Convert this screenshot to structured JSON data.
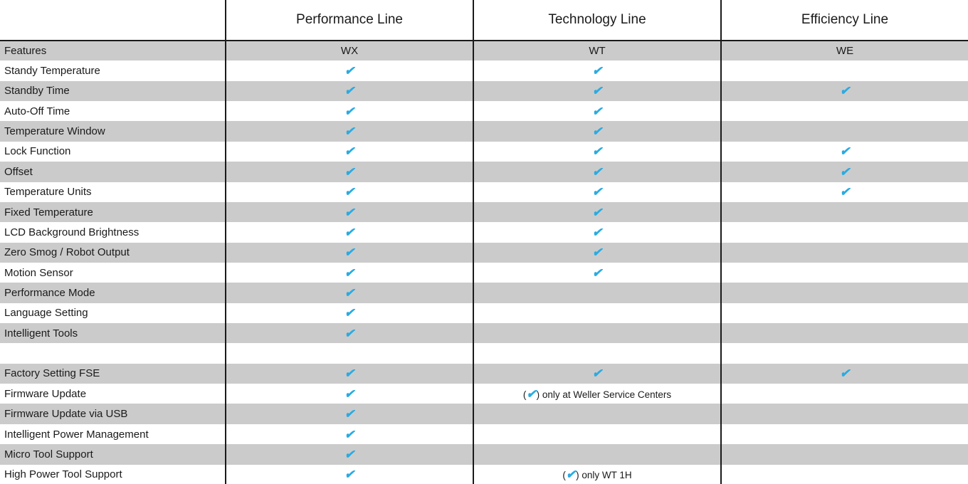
{
  "colors": {
    "accent": "#29ABE2",
    "stripe": "#CBCBCB",
    "text": "#1A1A1A",
    "line": "#1A1A1A"
  },
  "check_symbol": "✔",
  "header": {
    "groups": [
      "Performance Line",
      "Technology Line",
      "Efficiency Line"
    ]
  },
  "subheader": {
    "label": "Features",
    "models": [
      "WX",
      "WT",
      "WE"
    ]
  },
  "rows": [
    {
      "feature": "Standy Temperature",
      "cells": [
        {
          "check": true
        },
        {
          "check": true
        },
        {}
      ]
    },
    {
      "feature": "Standby Time",
      "cells": [
        {
          "check": true
        },
        {
          "check": true
        },
        {
          "check": true
        }
      ]
    },
    {
      "feature": "Auto-Off Time",
      "cells": [
        {
          "check": true
        },
        {
          "check": true
        },
        {}
      ]
    },
    {
      "feature": "Temperature Window",
      "cells": [
        {
          "check": true
        },
        {
          "check": true
        },
        {}
      ]
    },
    {
      "feature": "Lock Function",
      "cells": [
        {
          "check": true
        },
        {
          "check": true
        },
        {
          "check": true
        }
      ]
    },
    {
      "feature": "Offset",
      "cells": [
        {
          "check": true
        },
        {
          "check": true
        },
        {
          "check": true
        }
      ]
    },
    {
      "feature": "Temperature Units",
      "cells": [
        {
          "check": true
        },
        {
          "check": true
        },
        {
          "check": true
        }
      ]
    },
    {
      "feature": "Fixed Temperature",
      "cells": [
        {
          "check": true
        },
        {
          "check": true
        },
        {}
      ]
    },
    {
      "feature": "LCD Background Brightness",
      "cells": [
        {
          "check": true
        },
        {
          "check": true
        },
        {}
      ]
    },
    {
      "feature": "Zero Smog / Robot Output",
      "cells": [
        {
          "check": true
        },
        {
          "check": true
        },
        {}
      ]
    },
    {
      "feature": "Motion Sensor",
      "cells": [
        {
          "check": true
        },
        {
          "check": true
        },
        {}
      ]
    },
    {
      "feature": "Performance Mode",
      "cells": [
        {
          "check": true
        },
        {},
        {}
      ]
    },
    {
      "feature": "Language Setting",
      "cells": [
        {
          "check": true
        },
        {},
        {}
      ]
    },
    {
      "feature": "Intelligent Tools",
      "cells": [
        {
          "check": true
        },
        {},
        {}
      ]
    },
    {
      "feature": "",
      "cells": [
        {},
        {},
        {}
      ],
      "spacer": true
    },
    {
      "feature": "Factory Setting FSE",
      "cells": [
        {
          "check": true
        },
        {
          "check": true
        },
        {
          "check": true
        }
      ]
    },
    {
      "feature": "Firmware Update",
      "cells": [
        {
          "check": true
        },
        {
          "check": true,
          "note": "only at Weller Service Centers"
        },
        {}
      ]
    },
    {
      "feature": "Firmware Update via USB",
      "cells": [
        {
          "check": true
        },
        {},
        {}
      ]
    },
    {
      "feature": "Intelligent Power Management",
      "cells": [
        {
          "check": true
        },
        {},
        {}
      ]
    },
    {
      "feature": "Micro Tool Support",
      "cells": [
        {
          "check": true
        },
        {},
        {}
      ]
    },
    {
      "feature": "High Power Tool Support",
      "cells": [
        {
          "check": true
        },
        {
          "check": true,
          "note": "only WT 1H"
        },
        {}
      ]
    }
  ]
}
